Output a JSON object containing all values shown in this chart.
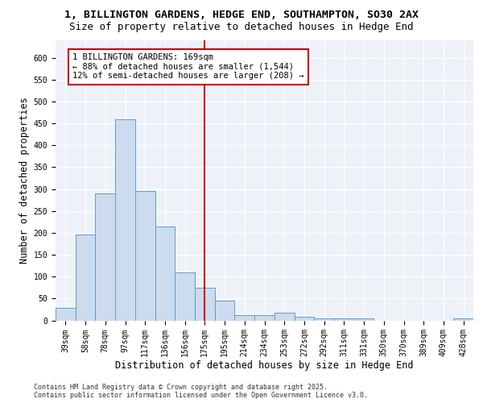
{
  "title_line1": "1, BILLINGTON GARDENS, HEDGE END, SOUTHAMPTON, SO30 2AX",
  "title_line2": "Size of property relative to detached houses in Hedge End",
  "xlabel": "Distribution of detached houses by size in Hedge End",
  "ylabel": "Number of detached properties",
  "bar_color": "#ccdcee",
  "bar_edge_color": "#6699cc",
  "bar_width": 1.0,
  "categories": [
    "39sqm",
    "58sqm",
    "78sqm",
    "97sqm",
    "117sqm",
    "136sqm",
    "156sqm",
    "175sqm",
    "195sqm",
    "214sqm",
    "234sqm",
    "253sqm",
    "272sqm",
    "292sqm",
    "311sqm",
    "331sqm",
    "350sqm",
    "370sqm",
    "389sqm",
    "409sqm",
    "428sqm"
  ],
  "values": [
    28,
    197,
    290,
    460,
    295,
    215,
    110,
    75,
    45,
    12,
    12,
    18,
    9,
    5,
    5,
    5,
    0,
    0,
    0,
    0,
    4
  ],
  "ylim": [
    0,
    640
  ],
  "yticks": [
    0,
    50,
    100,
    150,
    200,
    250,
    300,
    350,
    400,
    450,
    500,
    550,
    600
  ],
  "vline_x": 7.0,
  "vline_color": "#cc0000",
  "annotation_text": "1 BILLINGTON GARDENS: 169sqm\n← 88% of detached houses are smaller (1,544)\n12% of semi-detached houses are larger (208) →",
  "background_color": "#eef2f8",
  "grid_color": "#ffffff",
  "footer_text": "Contains HM Land Registry data © Crown copyright and database right 2025.\nContains public sector information licensed under the Open Government Licence v3.0.",
  "title_fontsize": 9.5,
  "subtitle_fontsize": 9,
  "axis_label_fontsize": 8.5,
  "tick_fontsize": 7,
  "annotation_fontsize": 7.5,
  "footer_fontsize": 6
}
